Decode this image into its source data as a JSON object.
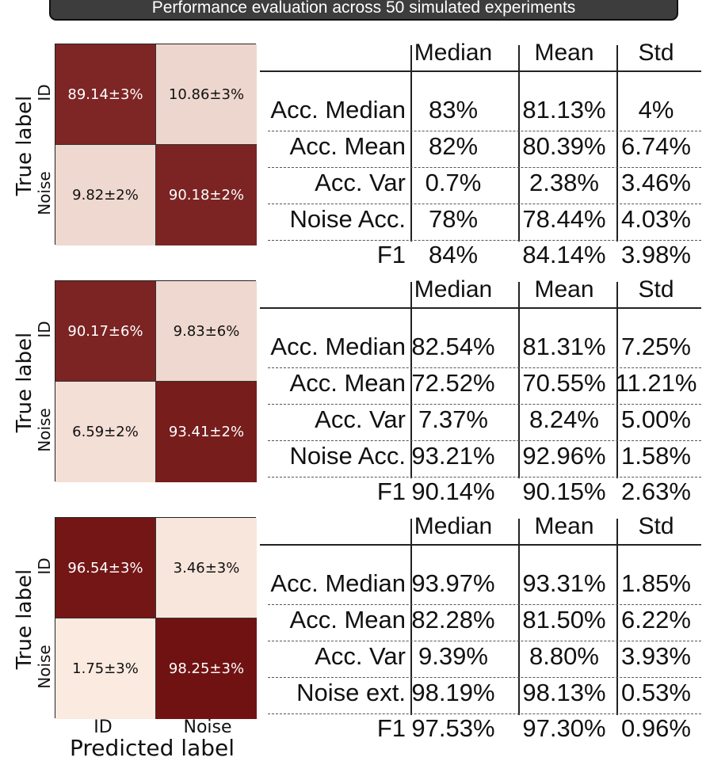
{
  "title": "Performance evaluation across 50 simulated experiments",
  "colors": {
    "banner_bg": "#3d3d3d",
    "heat_low": "#fdeee4",
    "heat_high": "#6e0e0e"
  },
  "chart_data": [
    {
      "type": "heatmap",
      "ylabel": "True label",
      "xlabel": "Predicted label",
      "row_labels": [
        "ID",
        "Noise"
      ],
      "col_labels": [
        "ID",
        "Noise"
      ],
      "values": [
        [
          89.14,
          10.86
        ],
        [
          9.82,
          90.18
        ]
      ],
      "cell_text": [
        [
          "89.14±3%",
          "10.86±3%"
        ],
        [
          "9.82±2%",
          "90.18±2%"
        ]
      ],
      "table": {
        "type": "table",
        "columns": [
          "Median",
          "Mean",
          "Std"
        ],
        "rows": [
          {
            "label": "Acc. Median",
            "values": [
              "83%",
              "81.13%",
              "4%"
            ]
          },
          {
            "label": "Acc. Mean",
            "values": [
              "82%",
              "80.39%",
              "6.74%"
            ]
          },
          {
            "label": "Acc. Var",
            "values": [
              "0.7%",
              "2.38%",
              "3.46%"
            ]
          },
          {
            "label": "Noise Acc.",
            "values": [
              "78%",
              "78.44%",
              "4.03%"
            ]
          },
          {
            "label": "F1",
            "values": [
              "84%",
              "84.14%",
              "3.98%"
            ]
          }
        ]
      }
    },
    {
      "type": "heatmap",
      "ylabel": "True label",
      "xlabel": "Predicted label",
      "row_labels": [
        "ID",
        "Noise"
      ],
      "col_labels": [
        "ID",
        "Noise"
      ],
      "values": [
        [
          90.17,
          9.83
        ],
        [
          6.59,
          93.41
        ]
      ],
      "cell_text": [
        [
          "90.17±6%",
          "9.83±6%"
        ],
        [
          "6.59±2%",
          "93.41±2%"
        ]
      ],
      "table": {
        "type": "table",
        "columns": [
          "Median",
          "Mean",
          "Std"
        ],
        "rows": [
          {
            "label": "Acc. Median",
            "values": [
              "82.54%",
              "81.31%",
              "7.25%"
            ]
          },
          {
            "label": "Acc. Mean",
            "values": [
              "72.52%",
              "70.55%",
              "11.21%"
            ]
          },
          {
            "label": "Acc. Var",
            "values": [
              "7.37%",
              "8.24%",
              "5.00%"
            ]
          },
          {
            "label": "Noise Acc.",
            "values": [
              "93.21%",
              "92.96%",
              "1.58%"
            ]
          },
          {
            "label": "F1",
            "values": [
              "90.14%",
              "90.15%",
              "2.63%"
            ]
          }
        ]
      }
    },
    {
      "type": "heatmap",
      "ylabel": "True label",
      "xlabel": "Predicted label",
      "row_labels": [
        "ID",
        "Noise"
      ],
      "col_labels": [
        "ID",
        "Noise"
      ],
      "values": [
        [
          96.54,
          3.46
        ],
        [
          1.75,
          98.25
        ]
      ],
      "cell_text": [
        [
          "96.54±3%",
          "3.46±3%"
        ],
        [
          "1.75±3%",
          "98.25±3%"
        ]
      ],
      "table": {
        "type": "table",
        "columns": [
          "Median",
          "Mean",
          "Std"
        ],
        "rows": [
          {
            "label": "Acc. Median",
            "values": [
              "93.97%",
              "93.31%",
              "1.85%"
            ]
          },
          {
            "label": "Acc. Mean",
            "values": [
              "82.28%",
              "81.50%",
              "6.22%"
            ]
          },
          {
            "label": "Acc. Var",
            "values": [
              "9.39%",
              "8.80%",
              "3.93%"
            ]
          },
          {
            "label": "Noise ext.",
            "values": [
              "98.19%",
              "98.13%",
              "0.53%"
            ]
          },
          {
            "label": "F1",
            "values": [
              "97.53%",
              "97.30%",
              "0.96%"
            ]
          }
        ]
      }
    }
  ]
}
